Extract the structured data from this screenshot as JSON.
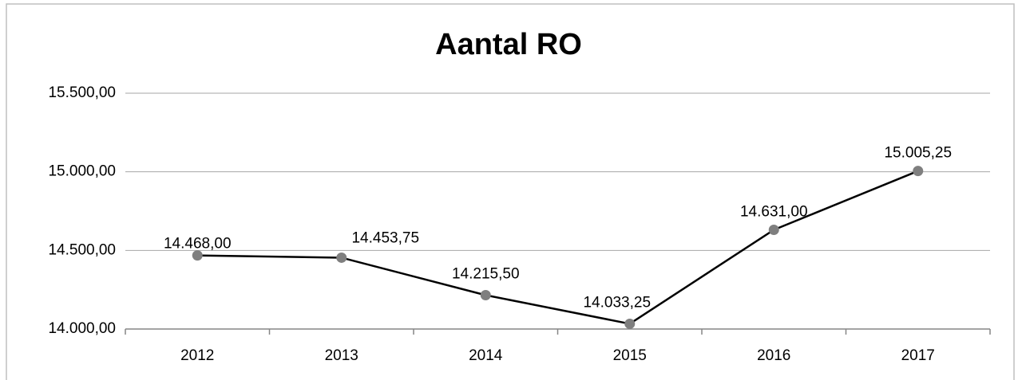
{
  "chart_data": {
    "type": "line",
    "title": "Aantal RO",
    "categories": [
      "2012",
      "2013",
      "2014",
      "2015",
      "2016",
      "2017"
    ],
    "series": [
      {
        "name": "Aantal RO",
        "color": "#000000",
        "marker_color": "#7f7f7f",
        "values": [
          14468,
          14453.75,
          14215.5,
          14033.25,
          14631,
          15005.25
        ],
        "value_labels": [
          "14.468,00",
          "14.453,75",
          "14.215,50",
          "14.033,25",
          "14.631,00",
          "15.005,25"
        ]
      }
    ],
    "ylim": [
      14000,
      15500
    ],
    "yticks": [
      {
        "value": 14000,
        "label": "14.000,00"
      },
      {
        "value": 14500,
        "label": "14.500,00"
      },
      {
        "value": 15000,
        "label": "15.000,00"
      },
      {
        "value": 15500,
        "label": "15.500,00"
      }
    ],
    "grid": true
  }
}
